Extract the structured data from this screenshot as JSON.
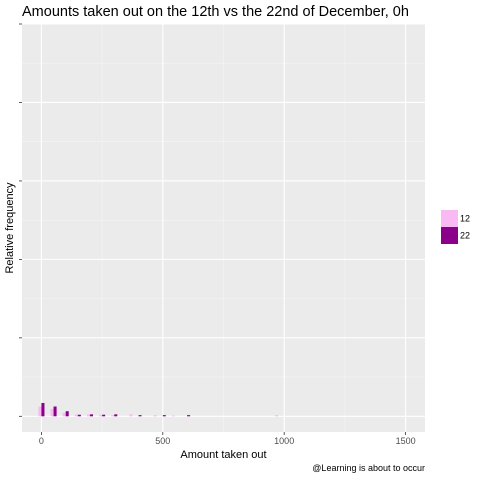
{
  "chart_data": {
    "type": "bar",
    "title": "Amounts taken out on the 12th vs the 22nd of December, 0h",
    "xlabel": "Amount taken out",
    "ylabel": "Relative frequency",
    "caption": "@Learning is about to occur",
    "xlim": [
      -80,
      1580
    ],
    "ylim": [
      -0.004,
      0.1
    ],
    "x_ticks": [
      0,
      500,
      1000,
      1500
    ],
    "x_tick_labels": [
      "0",
      "500",
      "1000",
      "1500"
    ],
    "y_ticks": [
      0,
      0.02,
      0.04,
      0.06,
      0.08,
      0.1
    ],
    "bin_width": 25,
    "grid": true,
    "legend_position": "right",
    "series": [
      {
        "name": "12",
        "color": "#f9b9f2",
        "bins": [
          {
            "x": 0,
            "value": 0.0025
          },
          {
            "x": 50,
            "value": 0.0019
          },
          {
            "x": 100,
            "value": 0.0009
          },
          {
            "x": 150,
            "value": 0.0004
          },
          {
            "x": 200,
            "value": 0.0005
          },
          {
            "x": 250,
            "value": 0.0003
          },
          {
            "x": 300,
            "value": 0.0003
          },
          {
            "x": 375,
            "value": 0.0005
          },
          {
            "x": 475,
            "value": 0.0003
          },
          {
            "x": 550,
            "value": 0.0002
          },
          {
            "x": 975,
            "value": 0.0003
          }
        ]
      },
      {
        "name": "22",
        "color": "#8b008b",
        "bins": [
          {
            "x": 0,
            "value": 0.0034
          },
          {
            "x": 50,
            "value": 0.0025
          },
          {
            "x": 100,
            "value": 0.0013
          },
          {
            "x": 150,
            "value": 0.0004
          },
          {
            "x": 200,
            "value": 0.0005
          },
          {
            "x": 250,
            "value": 0.0004
          },
          {
            "x": 300,
            "value": 0.0005
          },
          {
            "x": 400,
            "value": 0.0003
          },
          {
            "x": 500,
            "value": 0.0003
          },
          {
            "x": 600,
            "value": 0.0003
          }
        ]
      }
    ]
  }
}
